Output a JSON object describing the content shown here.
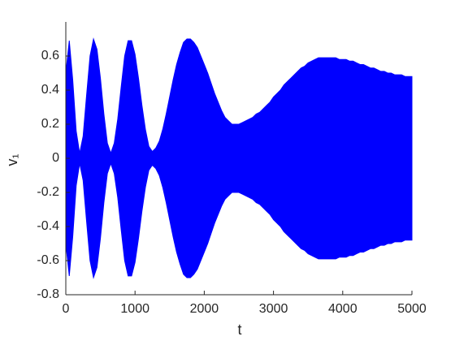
{
  "chart_data": {
    "type": "band",
    "x_label": "t",
    "y_label": "v₁",
    "x": [
      0,
      50,
      100,
      150,
      200,
      250,
      300,
      350,
      400,
      450,
      500,
      550,
      600,
      650,
      700,
      750,
      800,
      850,
      900,
      950,
      1000,
      1050,
      1100,
      1150,
      1200,
      1250,
      1300,
      1350,
      1400,
      1450,
      1500,
      1550,
      1600,
      1650,
      1700,
      1750,
      1800,
      1850,
      1900,
      1950,
      2000,
      2050,
      2100,
      2150,
      2200,
      2250,
      2300,
      2350,
      2400,
      2450,
      2500,
      2550,
      2600,
      2650,
      2700,
      2750,
      2800,
      2850,
      2900,
      2950,
      3000,
      3050,
      3100,
      3150,
      3200,
      3250,
      3300,
      3350,
      3400,
      3450,
      3500,
      3550,
      3600,
      3650,
      3700,
      3750,
      3800,
      3850,
      3900,
      3950,
      4000,
      4050,
      4100,
      4150,
      4200,
      4250,
      4300,
      4350,
      4400,
      4450,
      4500,
      4550,
      4600,
      4650,
      4700,
      4750,
      4800,
      4850,
      4900,
      4950,
      5000
    ],
    "series": [
      {
        "color": "#0000ff",
        "values": [
          0.5,
          0.69,
          0.46,
          0.16,
          0.03,
          0.13,
          0.37,
          0.6,
          0.7,
          0.64,
          0.47,
          0.26,
          0.09,
          0.03,
          0.09,
          0.23,
          0.42,
          0.6,
          0.69,
          0.69,
          0.61,
          0.47,
          0.31,
          0.17,
          0.07,
          0.04,
          0.06,
          0.1,
          0.17,
          0.26,
          0.36,
          0.46,
          0.55,
          0.62,
          0.68,
          0.7,
          0.7,
          0.68,
          0.65,
          0.6,
          0.55,
          0.5,
          0.44,
          0.38,
          0.33,
          0.28,
          0.24,
          0.22,
          0.2,
          0.2,
          0.2,
          0.21,
          0.22,
          0.23,
          0.24,
          0.26,
          0.27,
          0.29,
          0.31,
          0.33,
          0.36,
          0.38,
          0.4,
          0.43,
          0.45,
          0.47,
          0.49,
          0.51,
          0.53,
          0.54,
          0.56,
          0.57,
          0.58,
          0.59,
          0.59,
          0.59,
          0.59,
          0.59,
          0.59,
          0.58,
          0.58,
          0.58,
          0.57,
          0.57,
          0.56,
          0.55,
          0.55,
          0.54,
          0.53,
          0.53,
          0.52,
          0.51,
          0.51,
          0.5,
          0.5,
          0.49,
          0.49,
          0.49,
          0.48,
          0.48,
          0.48
        ]
      },
      {
        "color": "#0000ff",
        "values": [
          -0.5,
          -0.69,
          -0.46,
          -0.16,
          -0.03,
          -0.13,
          -0.37,
          -0.6,
          -0.7,
          -0.64,
          -0.47,
          -0.26,
          -0.09,
          -0.03,
          -0.09,
          -0.23,
          -0.42,
          -0.6,
          -0.69,
          -0.69,
          -0.61,
          -0.47,
          -0.31,
          -0.17,
          -0.07,
          -0.04,
          -0.06,
          -0.1,
          -0.17,
          -0.26,
          -0.36,
          -0.46,
          -0.55,
          -0.62,
          -0.68,
          -0.7,
          -0.7,
          -0.68,
          -0.65,
          -0.6,
          -0.55,
          -0.5,
          -0.44,
          -0.38,
          -0.33,
          -0.28,
          -0.24,
          -0.22,
          -0.2,
          -0.2,
          -0.2,
          -0.21,
          -0.22,
          -0.23,
          -0.24,
          -0.26,
          -0.27,
          -0.29,
          -0.31,
          -0.33,
          -0.36,
          -0.38,
          -0.4,
          -0.43,
          -0.45,
          -0.47,
          -0.49,
          -0.51,
          -0.53,
          -0.54,
          -0.56,
          -0.57,
          -0.58,
          -0.59,
          -0.59,
          -0.59,
          -0.59,
          -0.59,
          -0.59,
          -0.58,
          -0.58,
          -0.58,
          -0.57,
          -0.57,
          -0.56,
          -0.55,
          -0.55,
          -0.54,
          -0.53,
          -0.53,
          -0.52,
          -0.51,
          -0.51,
          -0.5,
          -0.5,
          -0.49,
          -0.49,
          -0.49,
          -0.48,
          -0.48,
          -0.48
        ]
      }
    ],
    "xlim": [
      0,
      5000
    ],
    "xticks": [
      0,
      1000,
      2000,
      3000,
      4000,
      5000
    ],
    "ylim": [
      -0.8,
      0.8
    ],
    "yticks": [
      -0.8,
      -0.6,
      -0.4,
      -0.2,
      0,
      0.2,
      0.4,
      0.6
    ],
    "grid": false
  }
}
